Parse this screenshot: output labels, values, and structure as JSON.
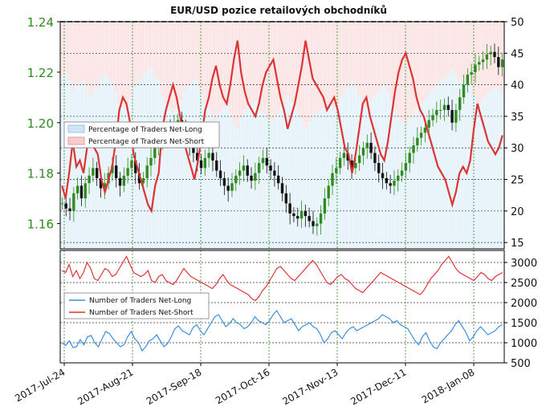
{
  "title": "EUR/USD pozice retailových obchodníků",
  "chart_data": [
    {
      "type": "line",
      "panel": "top",
      "left_axis": {
        "ticks": [
          "1.16",
          "1.18",
          "1.20",
          "1.22",
          "1.24"
        ],
        "range": [
          1.15,
          1.24
        ],
        "color": "#2e8b1e"
      },
      "right_axis": {
        "ticks": [
          "15",
          "20",
          "25",
          "30",
          "35",
          "40",
          "45",
          "50"
        ],
        "range": [
          14,
          50
        ]
      },
      "grid": true,
      "legend": {
        "position": "left-middle",
        "entries": [
          "Percentage of Traders Net-Long",
          "Percentage of Traders Net-Short"
        ]
      },
      "colors": {
        "net_long": "#cfe6f7",
        "net_short": "#f7cccc",
        "line": "#dd3333",
        "up": "#2e8b1e",
        "down": "#111111",
        "price_axis": "#2e8b1e"
      },
      "dashed_level": 50,
      "series": [
        {
          "name": "Percentage of Traders Net-Short",
          "axis": "right",
          "values": [
            24,
            22,
            26,
            31,
            27,
            28,
            26,
            30,
            33,
            30,
            29,
            25,
            23,
            25,
            27,
            31,
            36,
            38,
            37,
            34,
            29,
            27,
            25,
            23,
            21,
            20,
            24,
            26,
            33,
            36,
            38,
            40,
            38,
            35,
            31,
            29,
            27,
            25,
            28,
            32,
            36,
            38,
            41,
            43,
            40,
            38,
            37,
            40,
            44,
            47,
            42,
            39,
            37,
            36,
            35,
            37,
            40,
            42,
            43,
            44,
            41,
            38,
            36,
            33,
            35,
            37,
            40,
            43,
            47,
            44,
            41,
            40,
            39,
            38,
            36,
            37,
            38,
            36,
            33,
            30,
            29,
            26,
            29,
            33,
            37,
            38,
            35,
            33,
            31,
            29,
            28,
            31,
            35,
            39,
            42,
            44,
            45,
            43,
            41,
            38,
            36,
            35,
            33,
            31,
            29,
            27,
            26,
            25,
            23,
            21,
            23,
            26,
            27,
            26,
            28,
            33,
            37,
            35,
            33,
            31,
            30,
            29,
            30,
            32
          ]
        }
      ],
      "price_candles": [
        1.168,
        1.166,
        1.165,
        1.172,
        1.175,
        1.17,
        1.176,
        1.179,
        1.182,
        1.178,
        1.174,
        1.176,
        1.18,
        1.183,
        1.178,
        1.175,
        1.179,
        1.182,
        1.185,
        1.18,
        1.176,
        1.178,
        1.183,
        1.186,
        1.19,
        1.193,
        1.196,
        1.198,
        1.194,
        1.199,
        1.201,
        1.197,
        1.193,
        1.19,
        1.188,
        1.185,
        1.182,
        1.186,
        1.188,
        1.185,
        1.181,
        1.178,
        1.175,
        1.173,
        1.176,
        1.179,
        1.181,
        1.183,
        1.179,
        1.177,
        1.18,
        1.184,
        1.186,
        1.183,
        1.181,
        1.179,
        1.176,
        1.172,
        1.168,
        1.164,
        1.163,
        1.162,
        1.165,
        1.163,
        1.161,
        1.159,
        1.16,
        1.164,
        1.17,
        1.175,
        1.18,
        1.182,
        1.186,
        1.188,
        1.185,
        1.182,
        1.184,
        1.187,
        1.19,
        1.192,
        1.188,
        1.184,
        1.18,
        1.178,
        1.176,
        1.175,
        1.177,
        1.179,
        1.181,
        1.184,
        1.188,
        1.191,
        1.194,
        1.196,
        1.198,
        1.201,
        1.203,
        1.205,
        1.205,
        1.207,
        1.205,
        1.2,
        1.205,
        1.21,
        1.215,
        1.219,
        1.22,
        1.223,
        1.224,
        1.225,
        1.227,
        1.228,
        1.226,
        1.222,
        1.225
      ]
    },
    {
      "type": "line",
      "panel": "bottom",
      "right_axis": {
        "ticks": [
          "500",
          "1000",
          "1500",
          "2000",
          "2500",
          "3000"
        ],
        "range": [
          500,
          3300
        ]
      },
      "x_ticks": [
        "2017-Jul-24",
        "2017-Aug-21",
        "2017-Sep-18",
        "2017-Oct-16",
        "2017-Nov-13",
        "2017-Dec-11",
        "2018-Jan-08"
      ],
      "grid": true,
      "legend": {
        "position": "left-middle",
        "entries": [
          "Number of Traders Net-Long",
          "Number of Traders Net-Short"
        ]
      },
      "series": [
        {
          "name": "Number of Traders Net-Long",
          "color": "#3b8fe0",
          "values": [
            1000,
            930,
            1050,
            880,
            900,
            1080,
            950,
            1150,
            1180,
            1000,
            900,
            1100,
            1280,
            1230,
            1100,
            1000,
            900,
            950,
            1150,
            1280,
            1100,
            1000,
            800,
            900,
            1050,
            1100,
            1200,
            1050,
            900,
            980,
            1150,
            1350,
            1420,
            1300,
            1250,
            1200,
            1380,
            1450,
            1300,
            1200,
            1350,
            1500,
            1650,
            1700,
            1550,
            1400,
            1480,
            1600,
            1500,
            1450,
            1350,
            1400,
            1500,
            1650,
            1550,
            1500,
            1450,
            1550,
            1700,
            1800,
            1650,
            1500,
            1550,
            1600,
            1450,
            1300,
            1400,
            1450,
            1500,
            1400,
            1350,
            1200,
            1000,
            1100,
            1250,
            1300,
            1200,
            1100,
            1250,
            1350,
            1400,
            1300,
            1350,
            1400,
            1450,
            1500,
            1550,
            1600,
            1700,
            1650,
            1600,
            1500,
            1550,
            1450,
            1400,
            1350,
            1200,
            1050,
            950,
            1150,
            1250,
            1050,
            900,
            850,
            1000,
            1100,
            1200,
            1300,
            1450,
            1550,
            1400,
            1250,
            1050,
            1150,
            1300,
            1400,
            1300,
            1200,
            1250,
            1300,
            1400,
            1450
          ]
        },
        {
          "name": "Number of Traders Net-Short",
          "color": "#dd3333",
          "values": [
            2800,
            2750,
            2950,
            2650,
            2800,
            2600,
            2750,
            3000,
            2850,
            2600,
            2550,
            2700,
            2850,
            2800,
            2650,
            2700,
            2850,
            3000,
            3150,
            2950,
            2750,
            2700,
            2650,
            2700,
            2800,
            2550,
            2500,
            2650,
            2700,
            2550,
            2500,
            2450,
            2550,
            2700,
            2850,
            2750,
            2650,
            2600,
            2550,
            2500,
            2450,
            2400,
            2350,
            2450,
            2600,
            2700,
            2550,
            2450,
            2400,
            2350,
            2300,
            2250,
            2200,
            2100,
            2050,
            2150,
            2300,
            2400,
            2550,
            2700,
            2850,
            2900,
            2800,
            2700,
            2600,
            2550,
            2650,
            2750,
            2850,
            2950,
            3050,
            2950,
            2800,
            2650,
            2500,
            2450,
            2550,
            2650,
            2700,
            2600,
            2550,
            2450,
            2350,
            2300,
            2250,
            2350,
            2450,
            2550,
            2650,
            2750,
            2700,
            2650,
            2600,
            2550,
            2500,
            2450,
            2400,
            2350,
            2300,
            2250,
            2200,
            2300,
            2450,
            2600,
            2700,
            2800,
            2950,
            3050,
            3150,
            3000,
            2850,
            2750,
            2700,
            2650,
            2600,
            2550,
            2650,
            2750,
            2700,
            2600,
            2550,
            2650,
            2700,
            2750
          ]
        }
      ]
    }
  ]
}
